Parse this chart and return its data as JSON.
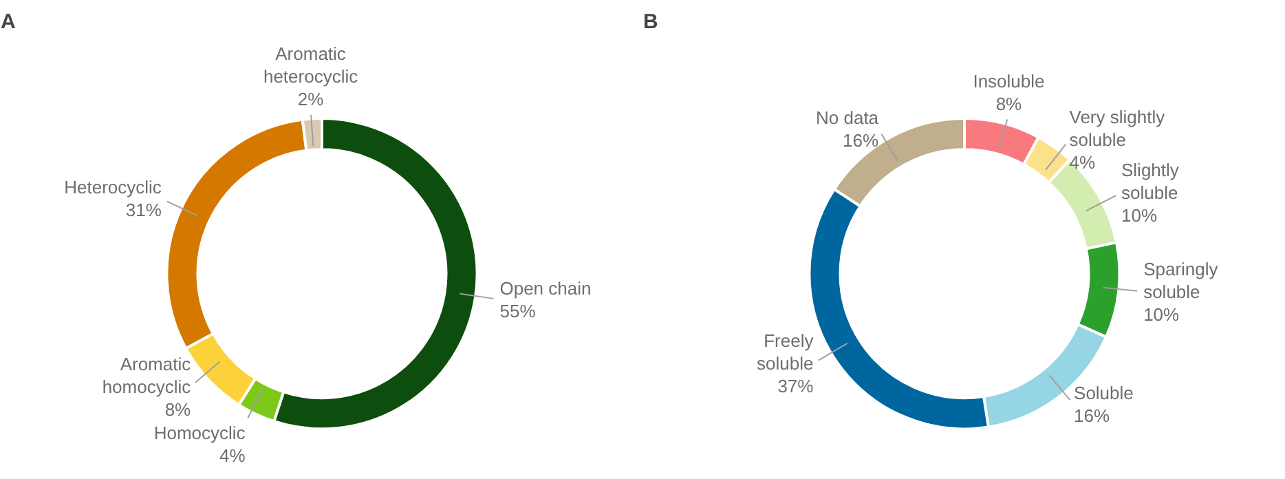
{
  "chart_data": [
    {
      "type": "donut",
      "title": "A",
      "categories": [
        "Open chain",
        "Homocyclic",
        "Aromatic homocyclic",
        "Heterocyclic",
        "Aromatic heterocyclic"
      ],
      "values": [
        55,
        4,
        8,
        31,
        2
      ],
      "colors": [
        "#0d4d0d",
        "#7ec81a",
        "#fdd13a",
        "#d47800",
        "#d9c9b0"
      ],
      "value_labels": [
        "55%",
        "4%",
        "8%",
        "31%",
        "2%"
      ]
    },
    {
      "type": "donut",
      "title": "B",
      "categories": [
        "Insoluble",
        "Very slightly soluble",
        "Slightly soluble",
        "Sparingly soluble",
        "Soluble",
        "Freely soluble",
        "No data"
      ],
      "values": [
        8,
        4,
        10,
        10,
        16,
        37,
        16
      ],
      "colors": [
        "#f97a7e",
        "#fde08a",
        "#d3ecb0",
        "#2ca02c",
        "#96d5e3",
        "#0066a0",
        "#c0ae8c"
      ],
      "value_labels": [
        "8%",
        "4%",
        "10%",
        "10%",
        "16%",
        "37%",
        "16%"
      ]
    }
  ]
}
